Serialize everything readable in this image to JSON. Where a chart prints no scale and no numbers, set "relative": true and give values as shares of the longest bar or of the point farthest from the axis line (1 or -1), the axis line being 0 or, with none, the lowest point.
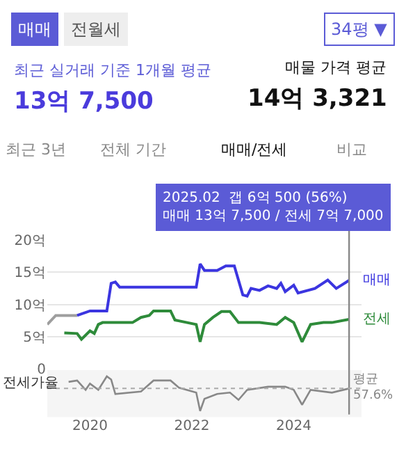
{
  "chart_data": [
    {
      "type": "line",
      "ylabel": null,
      "annotations": [
        "매매",
        "전월세",
        "34평 ▼",
        "최근 실거래 기준 1개월 평균",
        "13억 7,500",
        "매물 가격 평균",
        "14억 3,321",
        "최근 3년",
        "전체 기간",
        "매매/전세",
        "비교",
        "2025.02  갭 6억 500 (56%)\n매매 13억 7,500 / 전세 7억 7,000"
      ],
      "series": [
        {
          "color": "#9e9e9e",
          "x": [
            "2019-03",
            "2019-05",
            "2019-10"
          ],
          "values": [
            6.9,
            8.3,
            8.3
          ]
        },
        {
          "name": "매매",
          "color": "#3b35e0",
          "x": [
            "2019-10",
            "2020-01",
            "2020-05",
            "2020-06",
            "2020-07",
            "2020-08",
            "2022-02",
            "2022-03",
            "2022-04",
            "2022-07",
            "2022-09",
            "2022-11",
            "2023-01",
            "2023-02",
            "2023-03",
            "2023-05",
            "2023-07",
            "2023-09",
            "2023-10",
            "2023-11",
            "2024-01",
            "2024-02",
            "2024-06",
            "2024-09",
            "2024-11",
            "2025-02"
          ],
          "values": [
            8.3,
            9.0,
            9.0,
            13.3,
            13.5,
            12.7,
            12.7,
            16.3,
            15.3,
            15.3,
            16.0,
            16.0,
            11.5,
            11.3,
            12.5,
            12.2,
            12.9,
            12.5,
            13.3,
            12.0,
            13.0,
            11.8,
            12.5,
            13.8,
            12.5,
            13.75
          ]
        },
        {
          "name": "전세",
          "color": "#2e8b3a",
          "x": [
            "2019-07",
            "2019-10",
            "2019-11",
            "2020-01",
            "2020-02",
            "2020-03",
            "2020-04",
            "2020-11",
            "2021-01",
            "2021-03",
            "2021-04",
            "2021-08",
            "2021-09",
            "2022-02",
            "2022-03",
            "2022-04",
            "2022-06",
            "2022-08",
            "2022-10",
            "2022-12",
            "2023-05",
            "2023-09",
            "2023-11",
            "2024-01",
            "2024-03",
            "2024-05",
            "2024-08",
            "2024-10",
            "2025-02"
          ],
          "values": [
            5.6,
            5.5,
            4.6,
            5.9,
            5.5,
            6.9,
            7.2,
            7.2,
            8.0,
            8.3,
            9.0,
            9.0,
            7.6,
            6.9,
            4.2,
            6.9,
            8.0,
            8.9,
            8.9,
            7.2,
            7.2,
            6.9,
            8.0,
            7.2,
            4.2,
            6.9,
            7.2,
            7.2,
            7.7
          ]
        }
      ],
      "xlim": [
        "2019-03",
        "2025-05"
      ],
      "ylim": [
        0,
        20
      ],
      "yticks": [
        {
          "value": 0,
          "label": "0"
        },
        {
          "value": 5,
          "label": "5억"
        },
        {
          "value": 10,
          "label": "10억"
        },
        {
          "value": 15,
          "label": "15억"
        },
        {
          "value": 20,
          "label": "20억"
        }
      ],
      "ref_lines": [
        {
          "axis": "x",
          "value": "2025-02",
          "color": "#888888"
        }
      ],
      "grid": "y",
      "legend": false,
      "tick_labels": "y",
      "marker": "none",
      "line_style": "solid"
    },
    {
      "type": "line",
      "relative": true,
      "ylabel": "전세가율",
      "series": [
        {
          "color": "#888888",
          "x": [
            "2019-08",
            "2019-10",
            "2019-12",
            "2020-01",
            "2020-03",
            "2020-05",
            "2020-06",
            "2020-07",
            "2021-01",
            "2021-04",
            "2021-08",
            "2021-10",
            "2022-02",
            "2022-03",
            "2022-04",
            "2022-07",
            "2022-10",
            "2022-12",
            "2023-02",
            "2023-07",
            "2023-11",
            "2024-01",
            "2024-03",
            "2024-05",
            "2024-10",
            "2025-02"
          ],
          "values": [
            0.84,
            0.88,
            0.61,
            0.79,
            0.61,
            1.0,
            0.91,
            0.49,
            0.56,
            0.88,
            0.88,
            0.67,
            0.53,
            0.0,
            0.35,
            0.49,
            0.53,
            0.32,
            0.61,
            0.7,
            0.7,
            0.61,
            0.18,
            0.61,
            0.53,
            0.65
          ]
        }
      ],
      "xlim": [
        "2019-03",
        "2025-05"
      ],
      "xticks": [
        {
          "value": "2020",
          "label": "2020"
        },
        {
          "value": "2022",
          "label": "2022"
        },
        {
          "value": "2024",
          "label": "2024"
        }
      ],
      "ref_lines": [
        {
          "axis": "y",
          "value": 0.65,
          "label": "평균\n57.6%",
          "color": "#aaaaaa",
          "line_style": "dotted"
        }
      ],
      "grid": false,
      "legend": false,
      "tick_labels": "x",
      "marker": "none",
      "line_style": "solid"
    }
  ]
}
